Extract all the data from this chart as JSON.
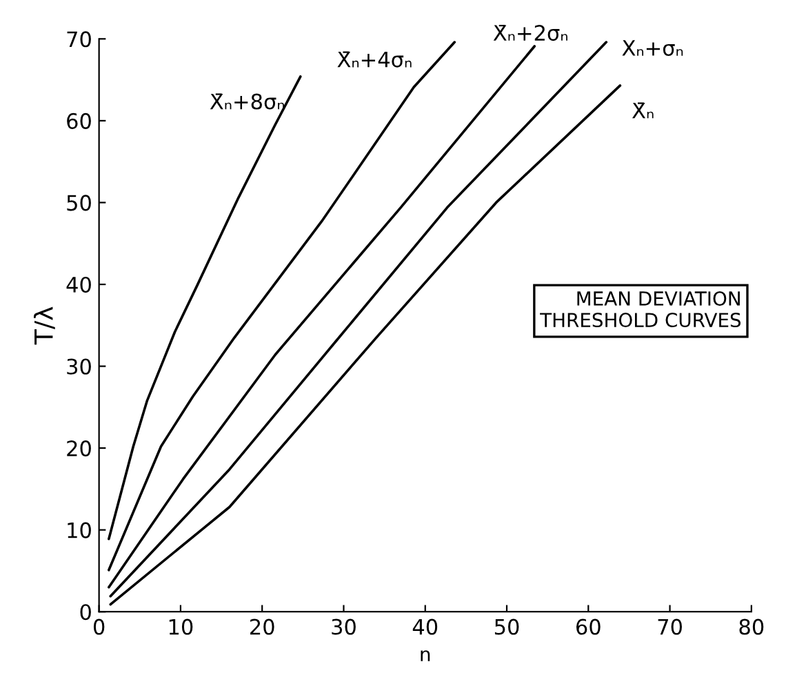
{
  "chart_data": {
    "type": "line",
    "xlabel": "n",
    "ylabel": "T/λ",
    "xlim": [
      0,
      80
    ],
    "ylim": [
      0,
      70
    ],
    "xticks": [
      0,
      10,
      20,
      30,
      40,
      50,
      60,
      70,
      80
    ],
    "yticks": [
      0,
      10,
      20,
      30,
      40,
      50,
      60,
      70
    ],
    "grid": false,
    "legend": false,
    "marker": "none",
    "line_style": "solid",
    "annotations": [
      "MEAN DEVIATION\nTHRESHOLD CURVES"
    ],
    "series": [
      {
        "name": "X̄ₙ+8σₙ",
        "color": "#000000",
        "x": [
          1.2,
          4.2,
          5.9,
          9.3,
          12,
          17.1,
          21.6,
          24.7
        ],
        "values": [
          8.9,
          20.2,
          25.8,
          34.2,
          39.8,
          50.6,
          59.5,
          65.4
        ]
      },
      {
        "name": "X̄ₙ+4σₙ",
        "color": "#000000",
        "x": [
          1.2,
          7.6,
          11.5,
          16.6,
          27.3,
          32,
          38.6,
          43.6
        ],
        "values": [
          5.1,
          20.2,
          26.3,
          33.5,
          47.7,
          54.5,
          64.1,
          69.6
        ]
      },
      {
        "name": "X̄ₙ+2σₙ",
        "color": "#000000",
        "x": [
          1.2,
          10.3,
          21.6,
          37,
          53.4
        ],
        "values": [
          3.0,
          16.2,
          31.4,
          49.4,
          69.1
        ]
      },
      {
        "name": "Xₙ+σₙ",
        "color": "#000000",
        "x": [
          1.4,
          16,
          29,
          42.7,
          62.2
        ],
        "values": [
          1.9,
          17.4,
          33,
          49.4,
          69.6
        ]
      },
      {
        "name": "X̄ₙ",
        "color": "#000000",
        "x": [
          1.4,
          16,
          34,
          48.7,
          63.9
        ],
        "values": [
          0.9,
          12.8,
          33.5,
          50,
          64.3
        ]
      }
    ]
  }
}
